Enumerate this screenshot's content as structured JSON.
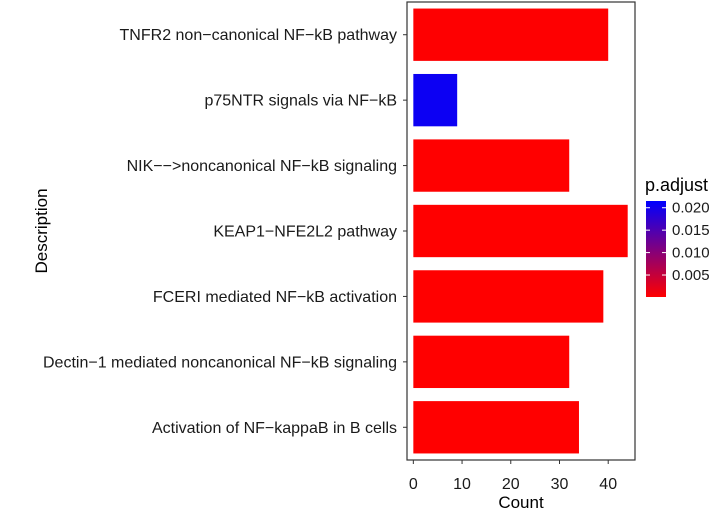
{
  "chart_data": {
    "type": "bar",
    "orientation": "horizontal",
    "categories": [
      "TNFR2 non−canonical NF−kB pathway",
      "p75NTR signals via NF−kB",
      "NIK−−>noncanonical NF−kB signaling",
      "KEAP1−NFE2L2 pathway",
      "FCERI mediated NF−kB activation",
      "Dectin−1 mediated noncanonical NF−kB signaling",
      "Activation of NF−kappaB in B cells"
    ],
    "values": [
      40,
      9,
      32,
      44,
      39,
      32,
      34
    ],
    "p_adjust": [
      0.0002,
      0.0205,
      0.0001,
      0.0001,
      0.0001,
      0.0001,
      0.0001
    ],
    "xlabel": "Count",
    "ylabel": "Description",
    "xlim": [
      -1.3,
      45.5
    ],
    "x_ticks": [
      0,
      10,
      20,
      30,
      40
    ],
    "x_tick_labels": [
      "0",
      "10",
      "20",
      "30",
      "40"
    ],
    "grid": false,
    "legend": {
      "title": "p.adjust",
      "position": "right",
      "tick_values": [
        0.02,
        0.015,
        0.01,
        0.005
      ],
      "tick_labels": [
        "0.020",
        "0.015",
        "0.010",
        "0.005"
      ],
      "low_color": "#FF0000",
      "high_color": "#0000FF",
      "range": [
        0.0001,
        0.0215
      ]
    }
  }
}
